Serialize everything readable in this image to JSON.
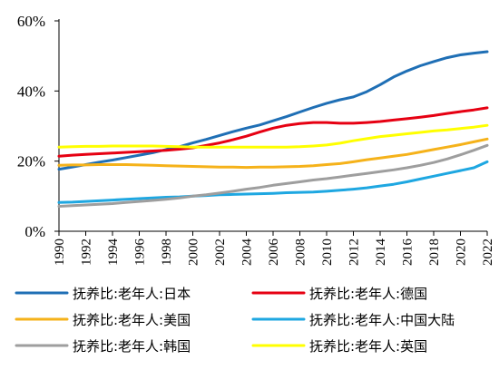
{
  "chart_data": {
    "type": "line",
    "title": "",
    "xlabel": "",
    "ylabel": "",
    "x": [
      1990,
      1991,
      1992,
      1993,
      1994,
      1995,
      1996,
      1997,
      1998,
      1999,
      2000,
      2001,
      2002,
      2003,
      2004,
      2005,
      2006,
      2007,
      2008,
      2009,
      2010,
      2011,
      2012,
      2013,
      2014,
      2015,
      2016,
      2017,
      2018,
      2019,
      2020,
      2021,
      2022
    ],
    "x_tick_labels": [
      "1990",
      "1992",
      "1994",
      "1996",
      "1998",
      "2000",
      "2002",
      "2004",
      "2006",
      "2008",
      "2010",
      "2012",
      "2014",
      "2016",
      "2018",
      "2020",
      "2022"
    ],
    "y_tick_labels": [
      "0%",
      "20%",
      "40%",
      "60%"
    ],
    "ylim": [
      0,
      0.6
    ],
    "grid": false,
    "legend_position": "bottom",
    "series": [
      {
        "name": "抚养比:老年人:日本",
        "color": "#1f6fb5",
        "values": [
          0.177,
          0.183,
          0.19,
          0.197,
          0.203,
          0.21,
          0.217,
          0.224,
          0.233,
          0.241,
          0.252,
          0.262,
          0.273,
          0.284,
          0.294,
          0.303,
          0.315,
          0.327,
          0.34,
          0.353,
          0.365,
          0.375,
          0.383,
          0.398,
          0.418,
          0.44,
          0.457,
          0.472,
          0.484,
          0.495,
          0.503,
          0.508,
          0.512
        ]
      },
      {
        "name": "抚养比:老年人:德国",
        "color": "#e60012",
        "values": [
          0.214,
          0.217,
          0.219,
          0.221,
          0.223,
          0.225,
          0.227,
          0.229,
          0.231,
          0.234,
          0.238,
          0.245,
          0.252,
          0.261,
          0.271,
          0.283,
          0.294,
          0.302,
          0.307,
          0.31,
          0.31,
          0.308,
          0.308,
          0.31,
          0.313,
          0.317,
          0.321,
          0.325,
          0.33,
          0.336,
          0.341,
          0.346,
          0.352
        ]
      },
      {
        "name": "抚养比:老年人:美国",
        "color": "#f5b21a",
        "values": [
          0.188,
          0.189,
          0.189,
          0.19,
          0.19,
          0.19,
          0.189,
          0.188,
          0.187,
          0.186,
          0.185,
          0.184,
          0.183,
          0.183,
          0.182,
          0.183,
          0.183,
          0.184,
          0.185,
          0.187,
          0.19,
          0.193,
          0.198,
          0.204,
          0.209,
          0.214,
          0.219,
          0.226,
          0.233,
          0.24,
          0.247,
          0.255,
          0.263
        ]
      },
      {
        "name": "抚养比:老年人:中国大陆",
        "color": "#1ea7e1",
        "values": [
          0.082,
          0.083,
          0.085,
          0.087,
          0.089,
          0.091,
          0.093,
          0.095,
          0.097,
          0.098,
          0.1,
          0.102,
          0.104,
          0.105,
          0.106,
          0.107,
          0.108,
          0.11,
          0.111,
          0.112,
          0.114,
          0.117,
          0.12,
          0.124,
          0.129,
          0.134,
          0.141,
          0.149,
          0.157,
          0.165,
          0.173,
          0.181,
          0.198
        ]
      },
      {
        "name": "抚养比:老年人:韩国",
        "color": "#9e9e9e",
        "values": [
          0.071,
          0.073,
          0.075,
          0.077,
          0.079,
          0.082,
          0.085,
          0.088,
          0.091,
          0.095,
          0.1,
          0.104,
          0.109,
          0.114,
          0.12,
          0.125,
          0.131,
          0.136,
          0.141,
          0.146,
          0.15,
          0.155,
          0.16,
          0.165,
          0.17,
          0.175,
          0.181,
          0.188,
          0.196,
          0.206,
          0.218,
          0.231,
          0.245
        ]
      },
      {
        "name": "抚养比:老年人:英国",
        "color": "#ffff00",
        "values": [
          0.24,
          0.241,
          0.242,
          0.242,
          0.243,
          0.243,
          0.243,
          0.243,
          0.242,
          0.241,
          0.24,
          0.24,
          0.24,
          0.24,
          0.24,
          0.24,
          0.24,
          0.24,
          0.241,
          0.243,
          0.246,
          0.251,
          0.258,
          0.264,
          0.27,
          0.274,
          0.278,
          0.282,
          0.286,
          0.289,
          0.293,
          0.297,
          0.302
        ]
      }
    ]
  }
}
